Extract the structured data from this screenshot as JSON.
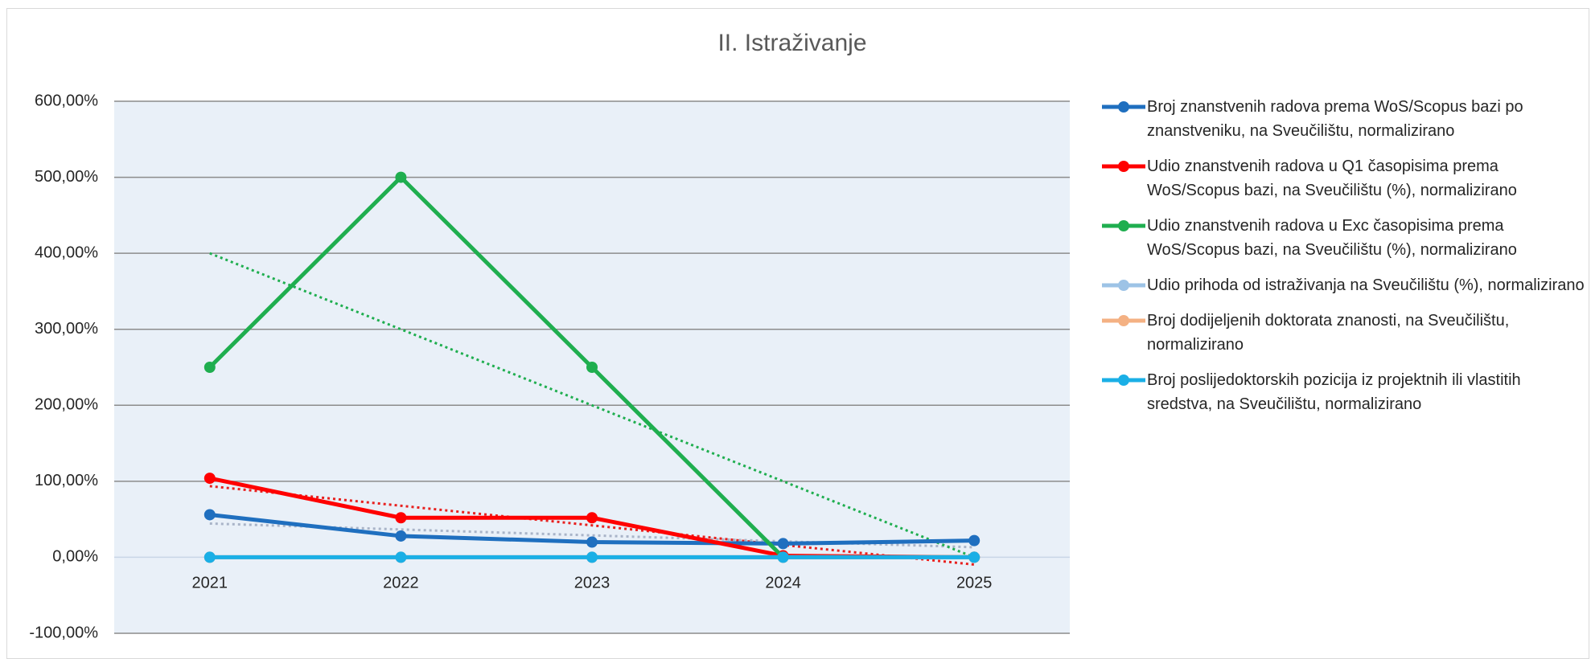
{
  "chart_data": {
    "type": "line",
    "title": "II. Istraživanje",
    "categories": [
      "2021",
      "2022",
      "2023",
      "2024",
      "2025"
    ],
    "ylim": [
      -100,
      600
    ],
    "yticks": [
      {
        "value": -100,
        "label": "-100,00%"
      },
      {
        "value": 0,
        "label": "0,00%"
      },
      {
        "value": 100,
        "label": "100,00%"
      },
      {
        "value": 200,
        "label": "200,00%"
      },
      {
        "value": 300,
        "label": "300,00%"
      },
      {
        "value": 400,
        "label": "400,00%"
      },
      {
        "value": 500,
        "label": "500,00%"
      },
      {
        "value": 600,
        "label": "600,00%"
      }
    ],
    "grid": true,
    "legend": "right",
    "series": [
      {
        "name": "Broj znanstvenih radova prema WoS/Scopus bazi po znanstveniku, na Sveučilištu, normalizirano",
        "color": "#1f6fbf",
        "values": [
          56,
          28,
          20,
          18,
          22
        ],
        "trendline": true,
        "trendline_color": "#a9b4c8"
      },
      {
        "name": "Udio znanstvenih radova u Q1 časopisima prema WoS/Scopus bazi, na Sveučilištu (%), normalizirano",
        "color": "#ff0000",
        "values": [
          104,
          52,
          52,
          2,
          0
        ],
        "trendline": true,
        "trendline_color": "#e8201e"
      },
      {
        "name": "Udio znanstvenih radova u Exc časopisima prema WoS/Scopus bazi, na Sveučilištu (%), normalizirano",
        "color": "#1fae4f",
        "values": [
          250,
          500,
          250,
          0,
          0
        ],
        "trendline": true,
        "trendline_color": "#1fae4f"
      },
      {
        "name": "Udio prihoda od istraživanja na Sveučilištu (%), normalizirano",
        "color": "#9dc3e6",
        "values": [
          0,
          0,
          0,
          0,
          0
        ],
        "trendline": false
      },
      {
        "name": "Broj dodijeljenih doktorata znanosti, na Sveučilištu, normalizirano",
        "color": "#f4b183",
        "values": [
          0,
          0,
          0,
          0,
          0
        ],
        "trendline": false
      },
      {
        "name": "Broj poslijedoktorskih pozicija iz projektnih ili vlastitih sredstva, na Sveučilištu, normalizirano",
        "color": "#1aafe6",
        "values": [
          0,
          0,
          0,
          0,
          0
        ],
        "trendline": false
      }
    ]
  }
}
